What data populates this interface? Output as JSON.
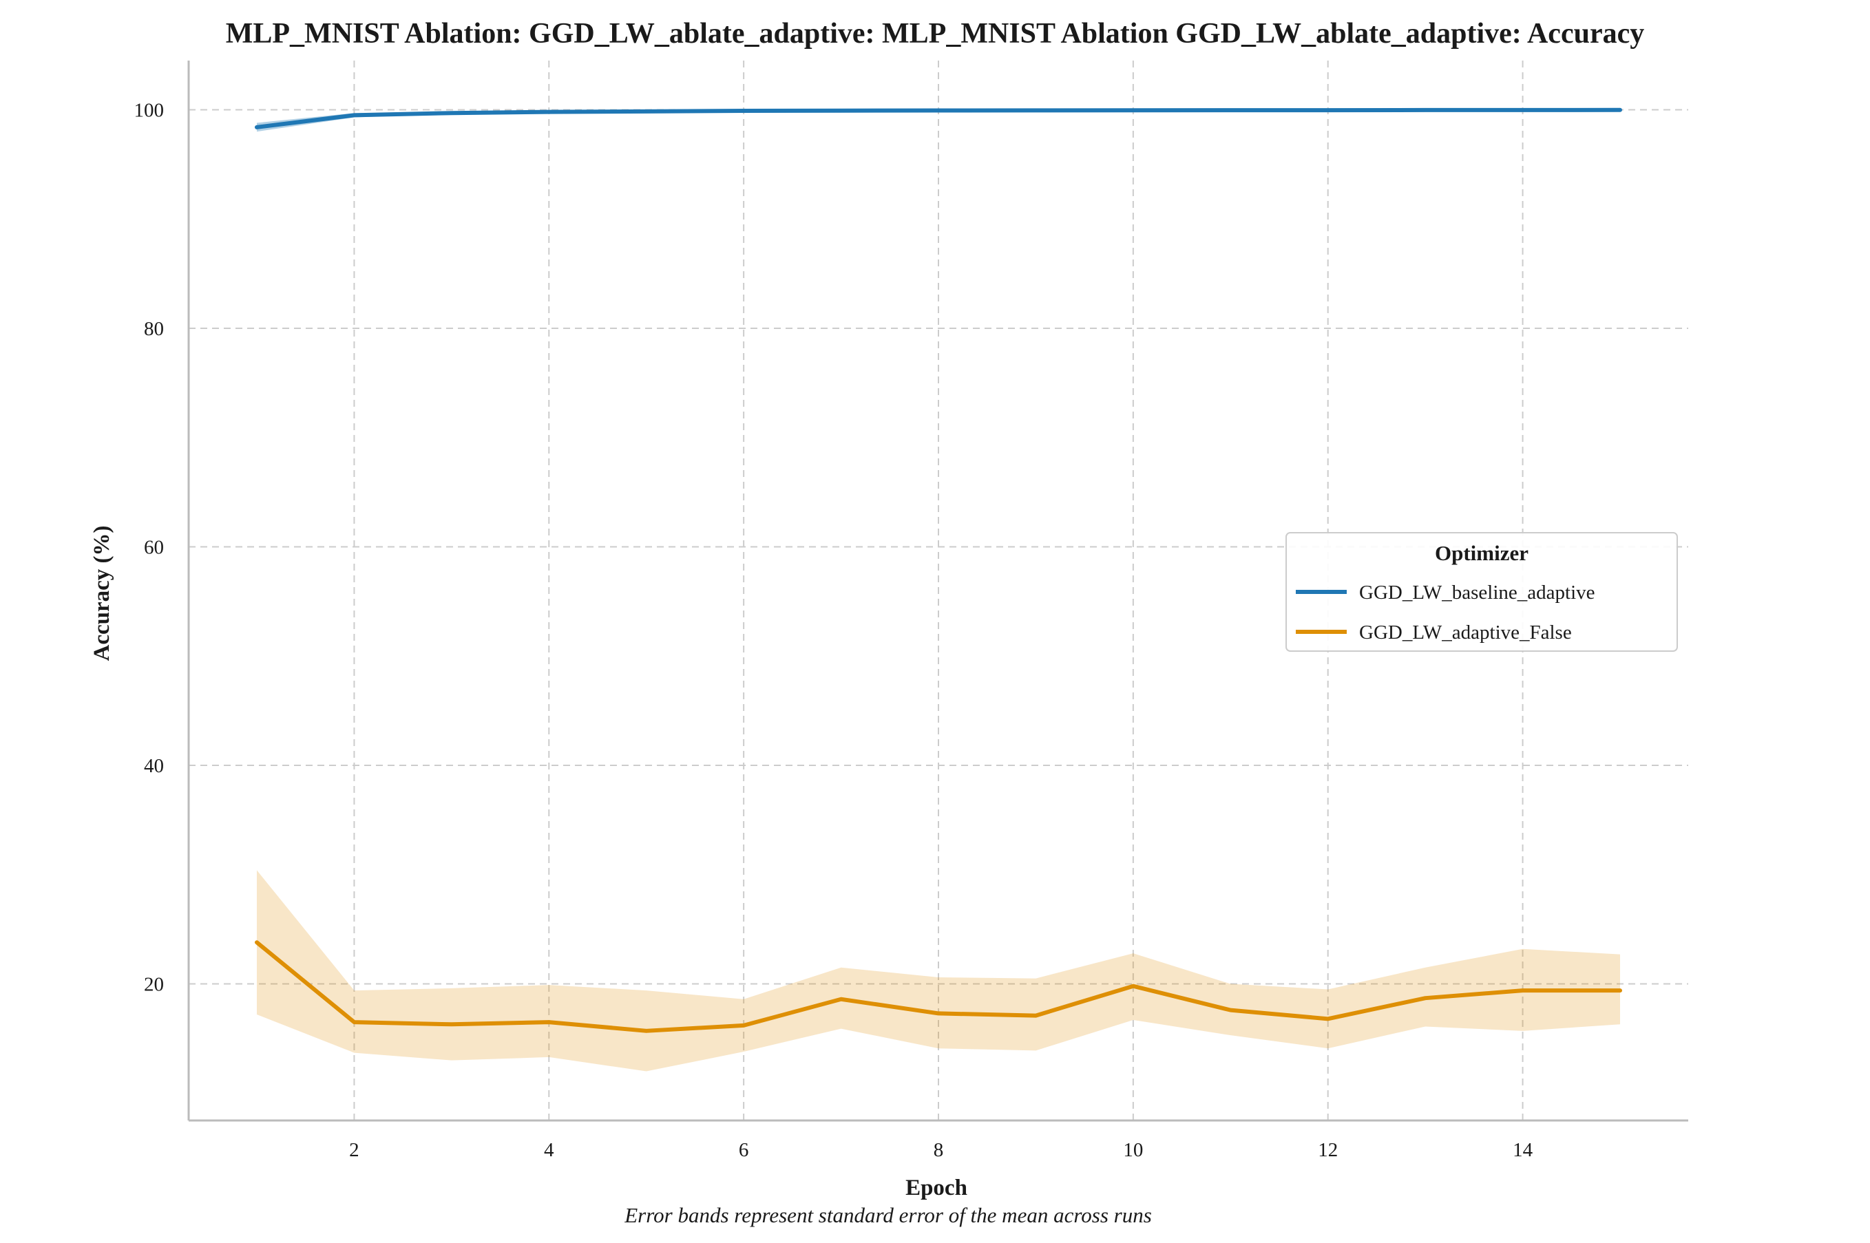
{
  "chart_data": {
    "type": "line",
    "title": "MLP_MNIST Ablation: GGD_LW_ablate_adaptive: MLP_MNIST Ablation GGD_LW_ablate_adaptive: Accuracy",
    "xlabel": "Epoch",
    "ylabel": "Accuracy (%)",
    "caption": "Error bands represent standard error of the mean across runs",
    "xlim": [
      0.3,
      15.7
    ],
    "ylim": [
      7.5,
      104.5
    ],
    "xticks": [
      2,
      4,
      6,
      8,
      10,
      12,
      14
    ],
    "yticks": [
      20,
      40,
      60,
      80,
      100
    ],
    "grid": true,
    "legend": {
      "title": "Optimizer",
      "placement": "center-right"
    },
    "x": [
      1,
      2,
      3,
      4,
      5,
      6,
      7,
      8,
      9,
      10,
      11,
      12,
      13,
      14,
      15
    ],
    "series": [
      {
        "name": "GGD_LW_baseline_adaptive",
        "color": "#1f77b4",
        "values": [
          98.4,
          99.5,
          99.7,
          99.8,
          99.85,
          99.9,
          99.92,
          99.93,
          99.94,
          99.95,
          99.96,
          99.96,
          99.97,
          99.97,
          99.98
        ],
        "lower": [
          98.0,
          99.3,
          99.6,
          99.75,
          99.8,
          99.85,
          99.88,
          99.9,
          99.91,
          99.92,
          99.93,
          99.94,
          99.95,
          99.95,
          99.96
        ],
        "upper": [
          98.8,
          99.7,
          99.8,
          99.85,
          99.9,
          99.95,
          99.96,
          99.96,
          99.97,
          99.98,
          99.99,
          99.98,
          99.99,
          99.99,
          100.0
        ]
      },
      {
        "name": "GGD_LW_adaptive_False",
        "color": "#de8f05",
        "values": [
          23.8,
          16.5,
          16.3,
          16.5,
          15.7,
          16.2,
          18.6,
          17.3,
          17.1,
          19.8,
          17.6,
          16.8,
          18.7,
          19.4,
          19.4
        ],
        "lower": [
          17.2,
          13.7,
          13.0,
          13.3,
          12.0,
          13.8,
          15.9,
          14.1,
          13.9,
          16.7,
          15.3,
          14.1,
          16.1,
          15.7,
          16.3
        ],
        "upper": [
          30.4,
          19.4,
          19.6,
          19.9,
          19.4,
          18.6,
          21.5,
          20.6,
          20.5,
          22.8,
          20.0,
          19.5,
          21.5,
          23.2,
          22.7
        ]
      }
    ]
  }
}
